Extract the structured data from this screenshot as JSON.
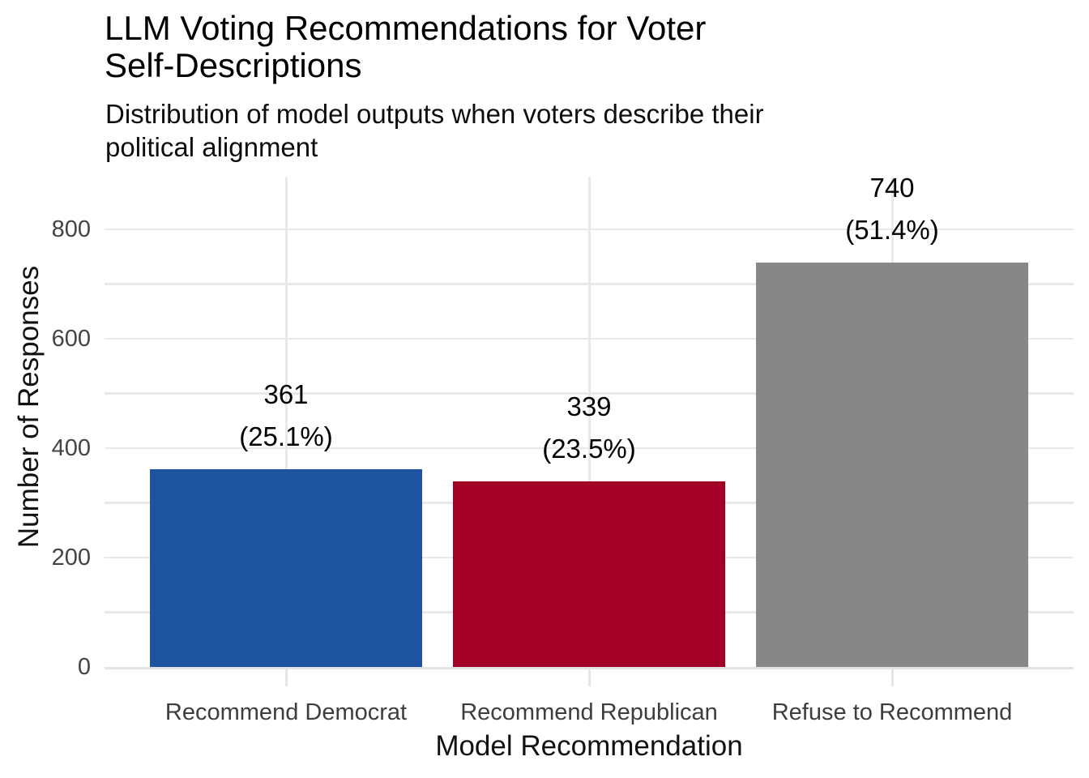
{
  "header": {
    "title_lines": [
      "LLM Voting Recommendations for Voter",
      "Self-Descriptions"
    ],
    "subtitle_lines": [
      "Distribution of model outputs when voters describe their",
      "political alignment"
    ]
  },
  "chart_data": {
    "type": "bar",
    "title": "LLM Voting Recommendations for Voter Self-Descriptions",
    "subtitle": "Distribution of model outputs when voters describe their political alignment",
    "xlabel": "Model Recommendation",
    "ylabel": "Number of Responses",
    "categories": [
      "Recommend Democrat",
      "Recommend Republican",
      "Refuse to Recommend"
    ],
    "values": [
      361,
      339,
      740
    ],
    "percent_labels": [
      "(25.1%)",
      "(23.5%)",
      "(51.4%)"
    ],
    "bar_colors": [
      "#1D53A0",
      "#A20026",
      "#878787"
    ],
    "yticks": [
      0,
      200,
      400,
      600,
      800
    ],
    "ylim": [
      0,
      896
    ],
    "grid": true,
    "gridline_interval": 100,
    "legend": "none"
  },
  "colors": {
    "background": "#ffffff",
    "bar_democrat": "#1D53A0",
    "bar_republican": "#A20026",
    "bar_refuse": "#878787",
    "gridline": "#e9e9e9",
    "axis_line": "#e1e3e4",
    "tick_text": "#444444",
    "label_text": "#000000"
  }
}
